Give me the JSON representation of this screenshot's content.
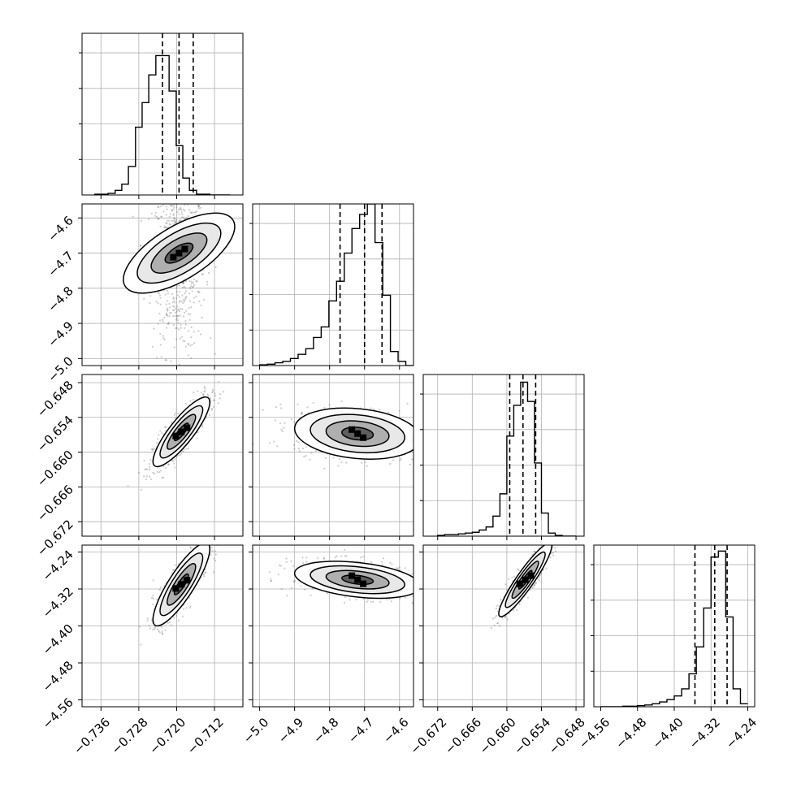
{
  "chart_data": {
    "type": "corner",
    "parameters": [
      {
        "index": 0,
        "range": [
          -0.74,
          -0.706
        ],
        "ticks": [
          -0.736,
          -0.728,
          -0.72,
          -0.712
        ],
        "tick_labels": [
          "−0.736",
          "−0.728",
          "−0.720",
          "−0.712"
        ],
        "quantiles": [
          -0.723,
          -0.7195,
          -0.7165
        ],
        "hist_bins": [
          -0.7373,
          -0.7359,
          -0.7345,
          -0.733,
          -0.7316,
          -0.7302,
          -0.7287,
          -0.7273,
          -0.7259,
          -0.7244,
          -0.723,
          -0.7216,
          -0.7201,
          -0.7187,
          -0.7173,
          -0.7158,
          -0.7144,
          -0.713,
          -0.7115,
          -0.7101,
          -0.7087
        ],
        "hist_values": [
          1,
          1,
          2,
          6,
          14,
          37,
          88,
          120,
          156,
          181,
          181,
          135,
          64,
          22,
          6,
          1,
          1,
          0,
          0,
          0
        ],
        "hist_ymax": 210
      },
      {
        "index": 1,
        "range": [
          -5.02,
          -4.56
        ],
        "ticks": [
          -5.0,
          -4.9,
          -4.8,
          -4.7,
          -4.6
        ],
        "tick_labels": [
          "−5.0",
          "−4.9",
          "−4.8",
          "−4.7",
          "−4.6"
        ],
        "quantiles": [
          -4.77,
          -4.7,
          -4.65
        ],
        "hist_bins": [
          -5.0,
          -4.978,
          -4.956,
          -4.934,
          -4.912,
          -4.89,
          -4.868,
          -4.846,
          -4.824,
          -4.802,
          -4.78,
          -4.758,
          -4.736,
          -4.714,
          -4.692,
          -4.67,
          -4.648,
          -4.626,
          -4.604,
          -4.582,
          -4.56
        ],
        "hist_values": [
          1,
          2,
          4,
          6,
          10,
          16,
          24,
          40,
          55,
          92,
          120,
          160,
          195,
          215,
          230,
          175,
          100,
          20,
          6,
          0
        ],
        "hist_ymax": 230
      },
      {
        "index": 2,
        "range": [
          -0.6745,
          -0.6466
        ],
        "ticks": [
          -0.672,
          -0.666,
          -0.66,
          -0.654,
          -0.648
        ],
        "tick_labels": [
          "−0.672",
          "−0.666",
          "−0.660",
          "−0.654",
          "−0.648"
        ],
        "quantiles": [
          -0.6595,
          -0.6572,
          -0.655
        ],
        "hist_bins": [
          -0.672,
          -0.6708,
          -0.6696,
          -0.6684,
          -0.6672,
          -0.666,
          -0.6648,
          -0.6636,
          -0.6624,
          -0.6612,
          -0.66,
          -0.6588,
          -0.6576,
          -0.6564,
          -0.6552,
          -0.654,
          -0.6528,
          -0.6516,
          -0.6504,
          -0.6492,
          -0.648
        ],
        "hist_values": [
          1,
          2,
          2,
          3,
          4,
          5,
          8,
          12,
          26,
          55,
          130,
          170,
          200,
          175,
          95,
          30,
          4,
          1,
          0,
          0
        ],
        "hist_ymax": 210
      },
      {
        "index": 3,
        "range": [
          -4.575,
          -4.225
        ],
        "ticks": [
          -4.56,
          -4.48,
          -4.4,
          -4.32,
          -4.24
        ],
        "tick_labels": [
          "−4.56",
          "−4.48",
          "−4.40",
          "−4.32",
          "−4.24"
        ],
        "quantiles": [
          -4.355,
          -4.312,
          -4.285
        ],
        "hist_bins": [
          -4.56,
          -4.544,
          -4.528,
          -4.512,
          -4.496,
          -4.48,
          -4.464,
          -4.448,
          -4.432,
          -4.416,
          -4.4,
          -4.384,
          -4.368,
          -4.352,
          -4.336,
          -4.32,
          -4.304,
          -4.288,
          -4.272,
          -4.256,
          -4.24
        ],
        "hist_values": [
          0,
          0,
          0,
          1,
          1,
          2,
          3,
          5,
          8,
          12,
          18,
          30,
          55,
          100,
          165,
          250,
          260,
          150,
          30,
          5
        ],
        "hist_ymax": 270
      }
    ],
    "pairs": [
      {
        "x": 0,
        "y": 1,
        "center": [
          -0.7195,
          -4.7
        ],
        "sigma": [
          0.0028,
          0.09
        ],
        "rho": 0.0,
        "theta": -0.55,
        "skew": "tail-low-y"
      },
      {
        "x": 0,
        "y": 2,
        "center": [
          -0.719,
          -0.6565
        ],
        "sigma": [
          0.003,
          0.003
        ],
        "rho": 0.85
      },
      {
        "x": 1,
        "y": 2,
        "center": [
          -4.72,
          -0.6568
        ],
        "sigma": [
          0.09,
          0.0022
        ],
        "rho": -0.2
      },
      {
        "x": 0,
        "y": 3,
        "center": [
          -0.719,
          -4.31
        ],
        "sigma": [
          0.003,
          0.045
        ],
        "rho": 0.85
      },
      {
        "x": 1,
        "y": 3,
        "center": [
          -4.72,
          -4.3
        ],
        "sigma": [
          0.09,
          0.02
        ],
        "rho": -0.35
      },
      {
        "x": 2,
        "y": 3,
        "center": [
          -0.6568,
          -4.3
        ],
        "sigma": [
          0.0023,
          0.04
        ],
        "rho": 0.92
      }
    ],
    "grid": true,
    "contour_levels_sigma": [
      0.5,
      1.0,
      1.5,
      2.0
    ],
    "colors": {
      "line": "#000000",
      "points": "#6e6e6e",
      "grid": "#b0b0b0",
      "fill_dark": "#000000",
      "fill_light": "#ffffff"
    }
  }
}
